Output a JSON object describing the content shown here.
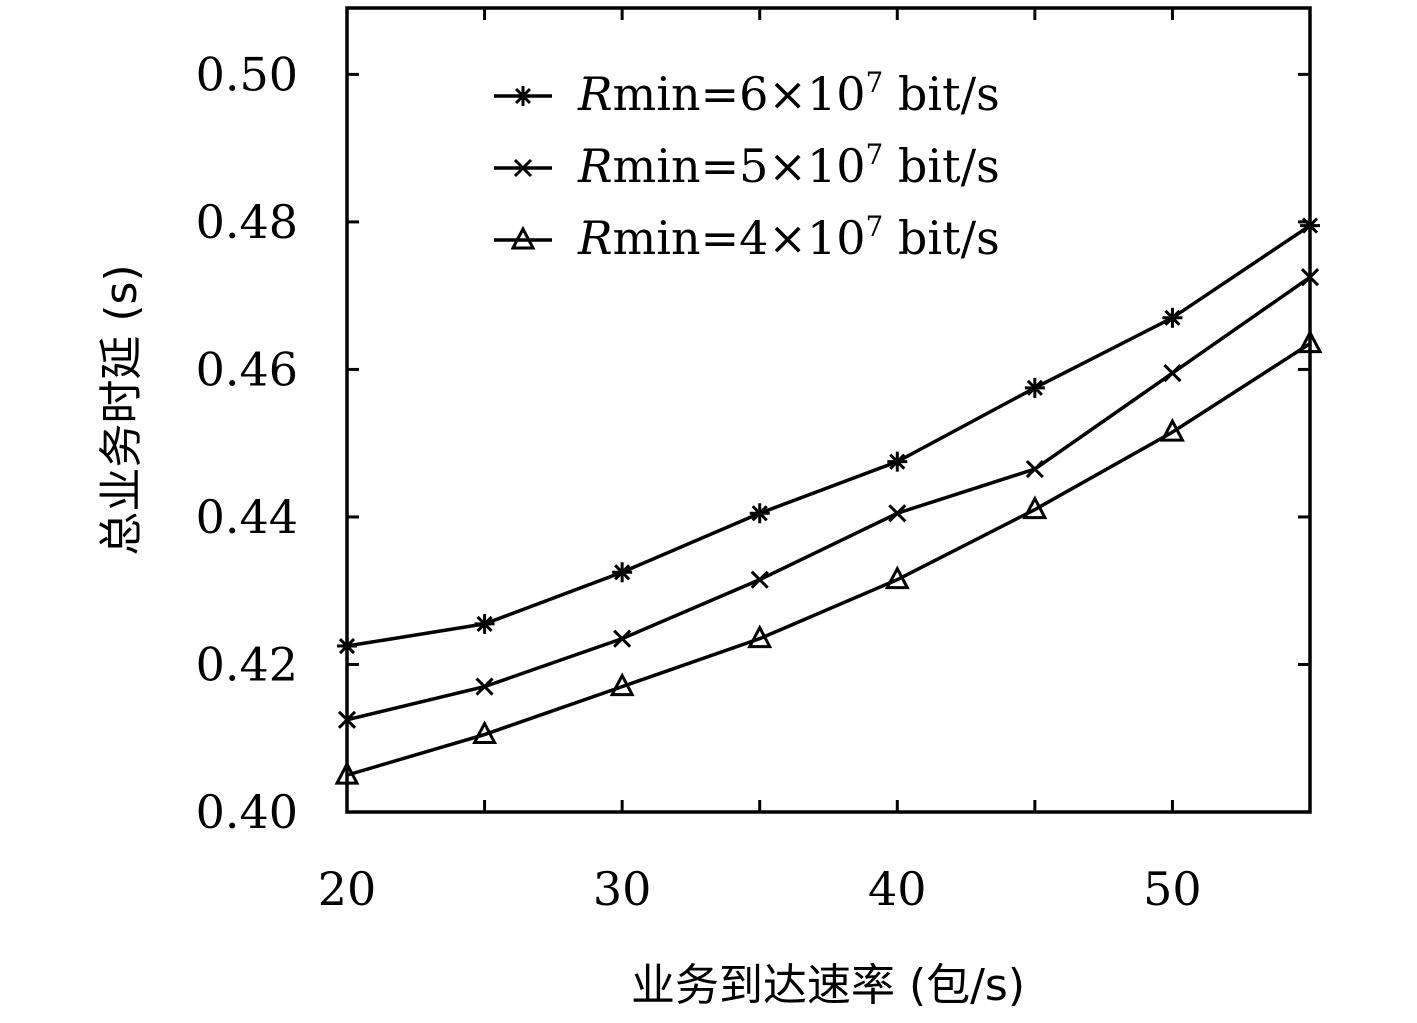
{
  "chart_data": {
    "type": "line",
    "xlabel": "业务到达速率 (包/s)",
    "ylabel": "总业务时延 (s)",
    "xlim": [
      20,
      55
    ],
    "ylim": [
      0.4,
      0.509
    ],
    "x_ticks": [
      20,
      30,
      40,
      50
    ],
    "x_tick_labels": [
      "20",
      "30",
      "40",
      "50"
    ],
    "y_ticks": [
      0.4,
      0.42,
      0.44,
      0.46,
      0.48,
      0.5
    ],
    "y_tick_labels": [
      "0.40",
      "0.42",
      "0.44",
      "0.46",
      "0.48",
      "0.50"
    ],
    "x": [
      20,
      25,
      30,
      35,
      40,
      45,
      50,
      55
    ],
    "grid": false,
    "legend_position": "top-left",
    "series": [
      {
        "legend_parts": {
          "R": "R",
          "min": "min=6×10",
          "exp": "7",
          "unit": " bit/s"
        },
        "marker": "asterisk",
        "values": [
          0.4225,
          0.4255,
          0.4325,
          0.4405,
          0.4475,
          0.4575,
          0.467,
          0.4795
        ]
      },
      {
        "legend_parts": {
          "R": "R",
          "min": "min=5×10",
          "exp": "7",
          "unit": " bit/s"
        },
        "marker": "x",
        "values": [
          0.4125,
          0.417,
          0.4235,
          0.4315,
          0.4405,
          0.4465,
          0.4595,
          0.4725
        ]
      },
      {
        "legend_parts": {
          "R": "R",
          "min": "min=4×10",
          "exp": "7",
          "unit": " bit/s"
        },
        "marker": "triangle",
        "values": [
          0.405,
          0.4105,
          0.417,
          0.4235,
          0.4315,
          0.441,
          0.4515,
          0.4635
        ]
      }
    ]
  }
}
